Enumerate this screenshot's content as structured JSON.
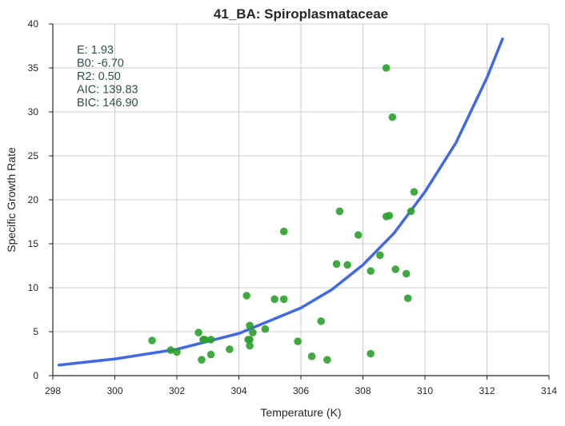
{
  "chart_data": {
    "type": "scatter",
    "title": "41_BA: Spiroplasmataceae",
    "xlabel": "Temperature (K)",
    "ylabel": "Specific Growth Rate",
    "xlim": [
      298,
      314
    ],
    "ylim": [
      0,
      40
    ],
    "xticks": [
      "298",
      "300",
      "302",
      "304",
      "306",
      "308",
      "310",
      "312",
      "314"
    ],
    "yticks": [
      "0",
      "5",
      "10",
      "15",
      "20",
      "25",
      "30",
      "35",
      "40"
    ],
    "grid": true,
    "colors": {
      "points": "#2ca02c",
      "fit": "#4169e1",
      "annotation": "#2f4f4f"
    },
    "annotations": [
      "E:  1.93",
      "B0:  -6.70",
      "R2:  0.50",
      "AIC: 139.83",
      "BIC: 146.90"
    ],
    "series": [
      {
        "type": "scatter",
        "points": [
          [
            301.2,
            4.0
          ],
          [
            301.8,
            2.9
          ],
          [
            302.0,
            2.7
          ],
          [
            302.7,
            4.9
          ],
          [
            302.8,
            1.8
          ],
          [
            302.85,
            4.1
          ],
          [
            302.9,
            4.1
          ],
          [
            303.1,
            2.4
          ],
          [
            303.1,
            4.1
          ],
          [
            303.7,
            3.0
          ],
          [
            304.25,
            9.1
          ],
          [
            304.3,
            4.1
          ],
          [
            304.35,
            3.4
          ],
          [
            304.35,
            4.1
          ],
          [
            304.35,
            5.7
          ],
          [
            304.45,
            4.9
          ],
          [
            304.85,
            5.3
          ],
          [
            305.15,
            8.7
          ],
          [
            305.45,
            8.7
          ],
          [
            305.45,
            16.4
          ],
          [
            305.9,
            3.9
          ],
          [
            306.35,
            2.2
          ],
          [
            306.65,
            6.2
          ],
          [
            306.85,
            1.8
          ],
          [
            307.15,
            12.7
          ],
          [
            307.25,
            18.7
          ],
          [
            307.5,
            12.6
          ],
          [
            307.85,
            16.0
          ],
          [
            308.25,
            11.9
          ],
          [
            308.25,
            2.5
          ],
          [
            308.55,
            13.7
          ],
          [
            308.75,
            18.1
          ],
          [
            308.75,
            35.0
          ],
          [
            308.85,
            18.2
          ],
          [
            308.95,
            29.4
          ],
          [
            309.05,
            12.1
          ],
          [
            309.4,
            11.6
          ],
          [
            309.45,
            8.8
          ],
          [
            309.55,
            18.7
          ],
          [
            309.65,
            20.9
          ]
        ]
      },
      {
        "type": "line",
        "points": [
          [
            298.2,
            1.2
          ],
          [
            300.0,
            1.9
          ],
          [
            302.0,
            3.0
          ],
          [
            304.0,
            4.8
          ],
          [
            306.0,
            7.7
          ],
          [
            307.0,
            9.8
          ],
          [
            308.0,
            12.6
          ],
          [
            309.0,
            16.2
          ],
          [
            310.0,
            20.9
          ],
          [
            311.0,
            26.5
          ],
          [
            312.0,
            33.9
          ],
          [
            312.5,
            38.3
          ]
        ]
      }
    ]
  }
}
